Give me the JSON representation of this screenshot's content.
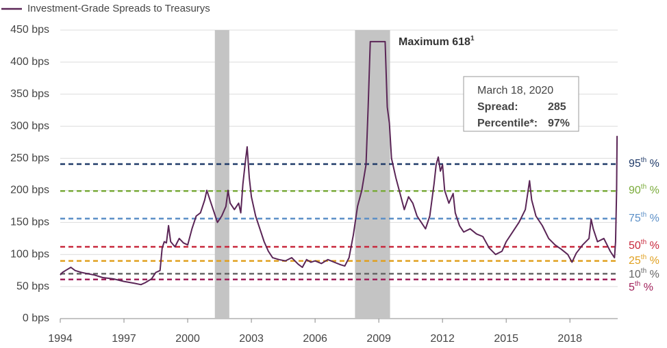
{
  "chart_data": {
    "type": "line",
    "legend": "Investment-Grade Spreads to Treasurys",
    "series": [
      {
        "name": "Investment-Grade Spreads to Treasurys",
        "color": "#5a2556",
        "x": [
          1994.0,
          1994.1,
          1994.3,
          1994.5,
          1994.7,
          1995.0,
          1995.3,
          1995.6,
          1996.0,
          1996.5,
          1997.0,
          1997.5,
          1997.8,
          1998.0,
          1998.3,
          1998.5,
          1998.7,
          1998.8,
          1998.9,
          1999.0,
          1999.1,
          1999.2,
          1999.4,
          1999.6,
          1999.8,
          2000.0,
          2000.2,
          2000.4,
          2000.6,
          2000.8,
          2000.9,
          2001.0,
          2001.2,
          2001.4,
          2001.6,
          2001.8,
          2001.9,
          2002.0,
          2002.2,
          2002.4,
          2002.5,
          2002.6,
          2002.7,
          2002.8,
          2002.9,
          2003.0,
          2003.2,
          2003.4,
          2003.6,
          2003.8,
          2004.0,
          2004.3,
          2004.6,
          2004.9,
          2005.2,
          2005.4,
          2005.6,
          2005.8,
          2006.0,
          2006.3,
          2006.6,
          2006.9,
          2007.2,
          2007.4,
          2007.6,
          2007.8,
          2008.0,
          2008.2,
          2008.4,
          2008.5,
          2008.6,
          2009.0,
          2009.3,
          2009.4,
          2009.5,
          2009.6,
          2009.8,
          2010.0,
          2010.2,
          2010.4,
          2010.6,
          2010.8,
          2011.0,
          2011.2,
          2011.4,
          2011.6,
          2011.7,
          2011.8,
          2011.9,
          2012.0,
          2012.1,
          2012.3,
          2012.5,
          2012.6,
          2012.8,
          2013.0,
          2013.3,
          2013.6,
          2013.9,
          2014.2,
          2014.5,
          2014.8,
          2015.0,
          2015.3,
          2015.6,
          2015.9,
          2016.1,
          2016.2,
          2016.4,
          2016.7,
          2017.0,
          2017.3,
          2017.6,
          2017.9,
          2018.1,
          2018.3,
          2018.6,
          2018.9,
          2019.0,
          2019.1,
          2019.3,
          2019.6,
          2019.9,
          2020.1,
          2020.15,
          2020.2,
          2020.22
        ],
        "values": [
          68,
          72,
          76,
          80,
          75,
          72,
          70,
          68,
          64,
          62,
          58,
          55,
          53,
          56,
          62,
          72,
          75,
          110,
          120,
          118,
          145,
          120,
          112,
          125,
          118,
          115,
          140,
          160,
          165,
          185,
          200,
          190,
          170,
          150,
          160,
          175,
          200,
          180,
          170,
          180,
          165,
          210,
          240,
          268,
          220,
          190,
          160,
          140,
          120,
          105,
          95,
          92,
          90,
          95,
          85,
          80,
          92,
          88,
          90,
          86,
          92,
          88,
          84,
          82,
          95,
          130,
          175,
          200,
          240,
          330,
          432,
          432,
          432,
          330,
          305,
          250,
          220,
          195,
          170,
          190,
          180,
          160,
          150,
          140,
          160,
          210,
          240,
          252,
          230,
          240,
          200,
          180,
          195,
          165,
          145,
          135,
          140,
          132,
          128,
          110,
          100,
          105,
          120,
          135,
          150,
          170,
          215,
          185,
          160,
          145,
          125,
          115,
          108,
          100,
          88,
          102,
          115,
          125,
          155,
          140,
          120,
          125,
          105,
          95,
          120,
          200,
          285
        ]
      }
    ],
    "xlim": [
      1994,
      2020.25
    ],
    "xticks": [
      1994,
      1997,
      2000,
      2003,
      2006,
      2009,
      2012,
      2015,
      2018
    ],
    "ylim": [
      0,
      450
    ],
    "yticks": [
      {
        "value": 0,
        "label": "0 bps"
      },
      {
        "value": 50,
        "label": "50 bps"
      },
      {
        "value": 100,
        "label": "100 bps"
      },
      {
        "value": 150,
        "label": "150 bps"
      },
      {
        "value": 200,
        "label": "200 bps"
      },
      {
        "value": 250,
        "label": "250 bps"
      },
      {
        "value": 300,
        "label": "300 bps"
      },
      {
        "value": 350,
        "label": "350 bps"
      },
      {
        "value": 400,
        "label": "400 bps"
      },
      {
        "value": 450,
        "label": "450 bps"
      }
    ],
    "grid": true,
    "recessions": [
      [
        2001.28,
        2001.96
      ],
      [
        2007.88,
        2009.53
      ]
    ],
    "recession_color": "#c4c4c4",
    "reference_lines": [
      {
        "value": 241,
        "label": "95",
        "suffix": "th",
        "unit": " %",
        "color": "#1f3a68"
      },
      {
        "value": 199,
        "label": "90",
        "suffix": "th",
        "unit": " %",
        "color": "#7aab3a"
      },
      {
        "value": 156,
        "label": "75",
        "suffix": "th",
        "unit": " %",
        "color": "#5b8fc7"
      },
      {
        "value": 112,
        "label": "50",
        "suffix": "th",
        "unit": " %",
        "color": "#c8283c"
      },
      {
        "value": 90,
        "label": "25",
        "suffix": "th",
        "unit": " %",
        "color": "#e0a020"
      },
      {
        "value": 70,
        "label": "10",
        "suffix": "th",
        "unit": " %",
        "color": "#666666"
      },
      {
        "value": 61,
        "label": "5",
        "suffix": "th",
        "unit": " %",
        "color": "#a0205a"
      }
    ],
    "annotations": {
      "maximum": {
        "text": "Maximum 618",
        "sup": "1"
      },
      "box": {
        "date": "March 18, 2020",
        "spread_label": "Spread:",
        "spread_value": "285",
        "percentile_label": "Percentile*:",
        "percentile_value": "97%"
      }
    }
  }
}
